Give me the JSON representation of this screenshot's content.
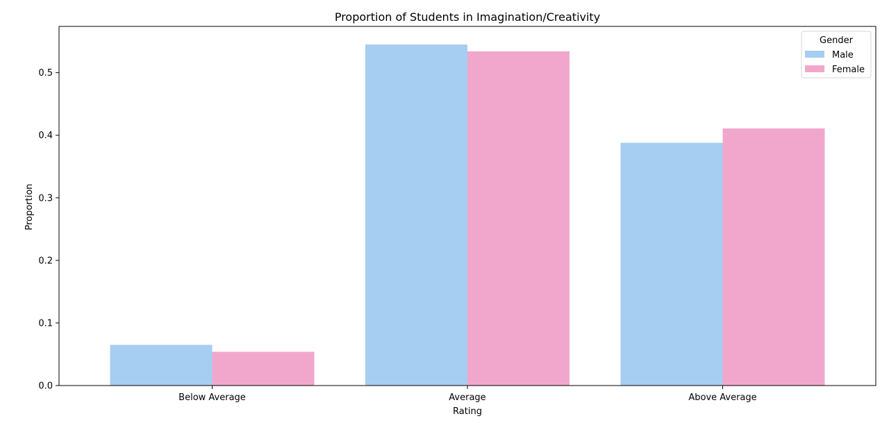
{
  "chart_data": {
    "type": "bar",
    "title": "Proportion of Students in Imagination/Creativity",
    "xlabel": "Rating",
    "ylabel": "Proportion",
    "categories": [
      "Below Average",
      "Average",
      "Above Average"
    ],
    "series": [
      {
        "name": "Male",
        "values": [
          0.065,
          0.545,
          0.388
        ],
        "color": "#a6cdf2"
      },
      {
        "name": "Female",
        "values": [
          0.054,
          0.534,
          0.411
        ],
        "color": "#f1a7cc"
      }
    ],
    "ylim": [
      0,
      0.574
    ],
    "yticks": [
      0.0,
      0.1,
      0.2,
      0.3,
      0.4,
      0.5
    ],
    "ytick_labels": [
      "0.0",
      "0.1",
      "0.2",
      "0.3",
      "0.4",
      "0.5"
    ],
    "grid": false,
    "legend": {
      "title": "Gender",
      "placement": "top-right"
    }
  }
}
